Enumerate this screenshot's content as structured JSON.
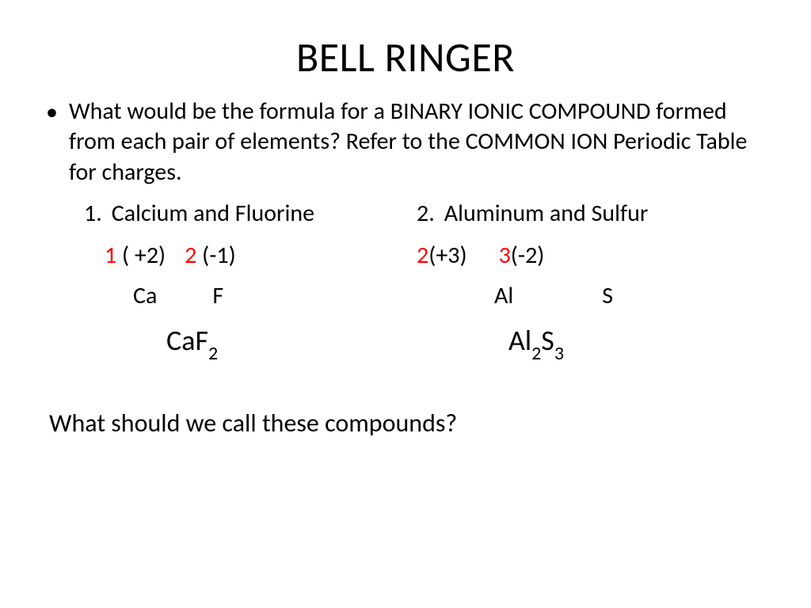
{
  "title": "BELL RINGER",
  "question": "What would be the formula for a BINARY IONIC COMPOUND formed from each pair of elements? Refer to the COMMON ION Periodic Table for charges.",
  "items": {
    "left": {
      "num": "1.",
      "label": "Calcium and Fluorine"
    },
    "right": {
      "num": "2.",
      "label": "Aluminum and Sulfur"
    }
  },
  "charges": {
    "left": {
      "a_red": "1",
      "a_black": " ( +2)",
      "b_red": "2",
      "b_black": "  (-1)"
    },
    "right": {
      "a_red": "2",
      "a_black": "(+3)",
      "b_red": "3",
      "b_black": "(-2)"
    }
  },
  "symbols": {
    "left": {
      "a": "Ca",
      "b": "F"
    },
    "right": {
      "a": "Al",
      "b": "S"
    }
  },
  "results": {
    "left": {
      "base": "CaF",
      "sub": "2"
    },
    "right": {
      "p1": "Al",
      "s1": "2",
      "p2": "S",
      "s2": "3"
    }
  },
  "final_question": "What should we call these compounds?",
  "colors": {
    "text": "#000000",
    "highlight": "#ff0000",
    "background": "#ffffff"
  },
  "fonts": {
    "title_size": 52,
    "body_size": 30,
    "result_size": 36,
    "final_size": 32
  }
}
